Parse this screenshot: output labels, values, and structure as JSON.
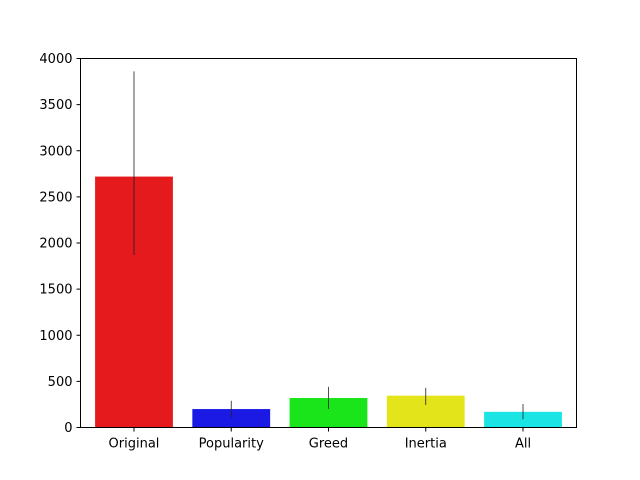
{
  "chart_data": {
    "type": "bar",
    "title": "",
    "xlabel": "",
    "ylabel": "",
    "categories": [
      "Original",
      "Popularity",
      "Greed",
      "Inertia",
      "All"
    ],
    "values": [
      2720,
      200,
      320,
      345,
      170
    ],
    "error_low": [
      1870,
      110,
      200,
      245,
      90
    ],
    "error_high": [
      3860,
      290,
      440,
      430,
      255
    ],
    "colors": [
      "#e41a1c",
      "#1a1ae4",
      "#1ae41a",
      "#e4e41a",
      "#1ae4e4"
    ],
    "ylim": [
      0,
      4000
    ],
    "yticks": [
      0,
      500,
      1000,
      1500,
      2000,
      2500,
      3000,
      3500,
      4000
    ],
    "grid": false,
    "legend": false
  }
}
